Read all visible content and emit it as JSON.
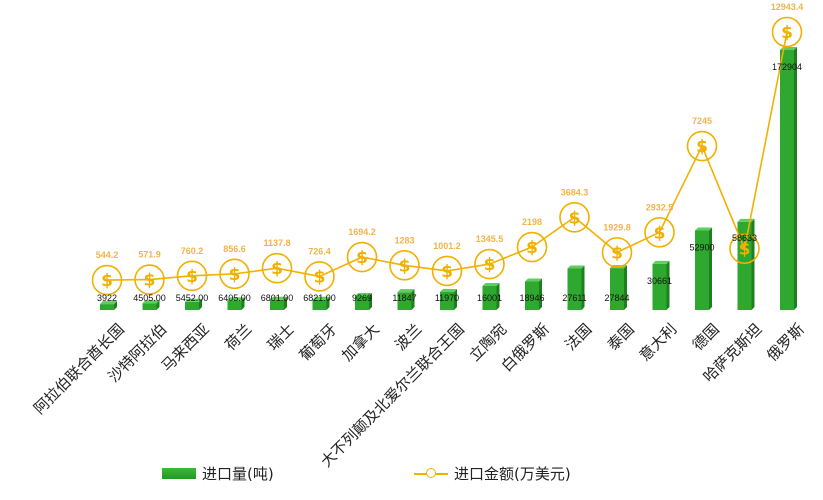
{
  "chart_data": {
    "type": "bar",
    "categories": [
      "阿拉伯联合酋长国",
      "沙特阿拉伯",
      "马来西亚",
      "荷兰",
      "瑞士",
      "葡萄牙",
      "加拿大",
      "波兰",
      "大不列颠及北爱尔兰联合王国",
      "立陶宛",
      "白俄罗斯",
      "法国",
      "泰国",
      "意大利",
      "德国",
      "哈萨克斯坦",
      "俄罗斯"
    ],
    "series": [
      {
        "name": "进口量(吨)",
        "type": "bar",
        "values": [
          3922,
          4505,
          5452,
          6405,
          6801,
          6821,
          9269,
          11847,
          11970,
          16001,
          18946,
          27611,
          27844,
          30661,
          52900,
          58633,
          172904
        ],
        "labels": [
          "3922",
          "4505.00",
          "5452.00",
          "6405.00",
          "6801.00",
          "6821.00",
          "9269",
          "11847",
          "11970",
          "16001",
          "18946",
          "27611",
          "27844",
          "30661",
          "52900",
          "58633",
          "172904"
        ],
        "color": "#2ea82e"
      },
      {
        "name": "进口金额(万美元)",
        "type": "line",
        "values": [
          544.2,
          571.9,
          760.2,
          856.6,
          1137.8,
          726.4,
          1694.2,
          1283,
          1001.2,
          1345.5,
          2198,
          3684.3,
          1929.8,
          2932.5,
          7245,
          2112,
          12943.4
        ],
        "labels": [
          "544.2",
          "571.9",
          "760.2",
          "856.6",
          "1137.8",
          "726.4",
          "1694.2",
          "1283",
          "1001.2",
          "1345.5",
          "2198",
          "3684.3",
          "1929.8",
          "2932.5",
          "7245",
          "",
          "12943.4"
        ],
        "marker_symbol": "$",
        "color": "#f2b100"
      }
    ],
    "legend_position": "bottom",
    "grid": false
  },
  "legend": {
    "bar_label": "进口量(吨)",
    "line_label": "进口金额(万美元)"
  }
}
